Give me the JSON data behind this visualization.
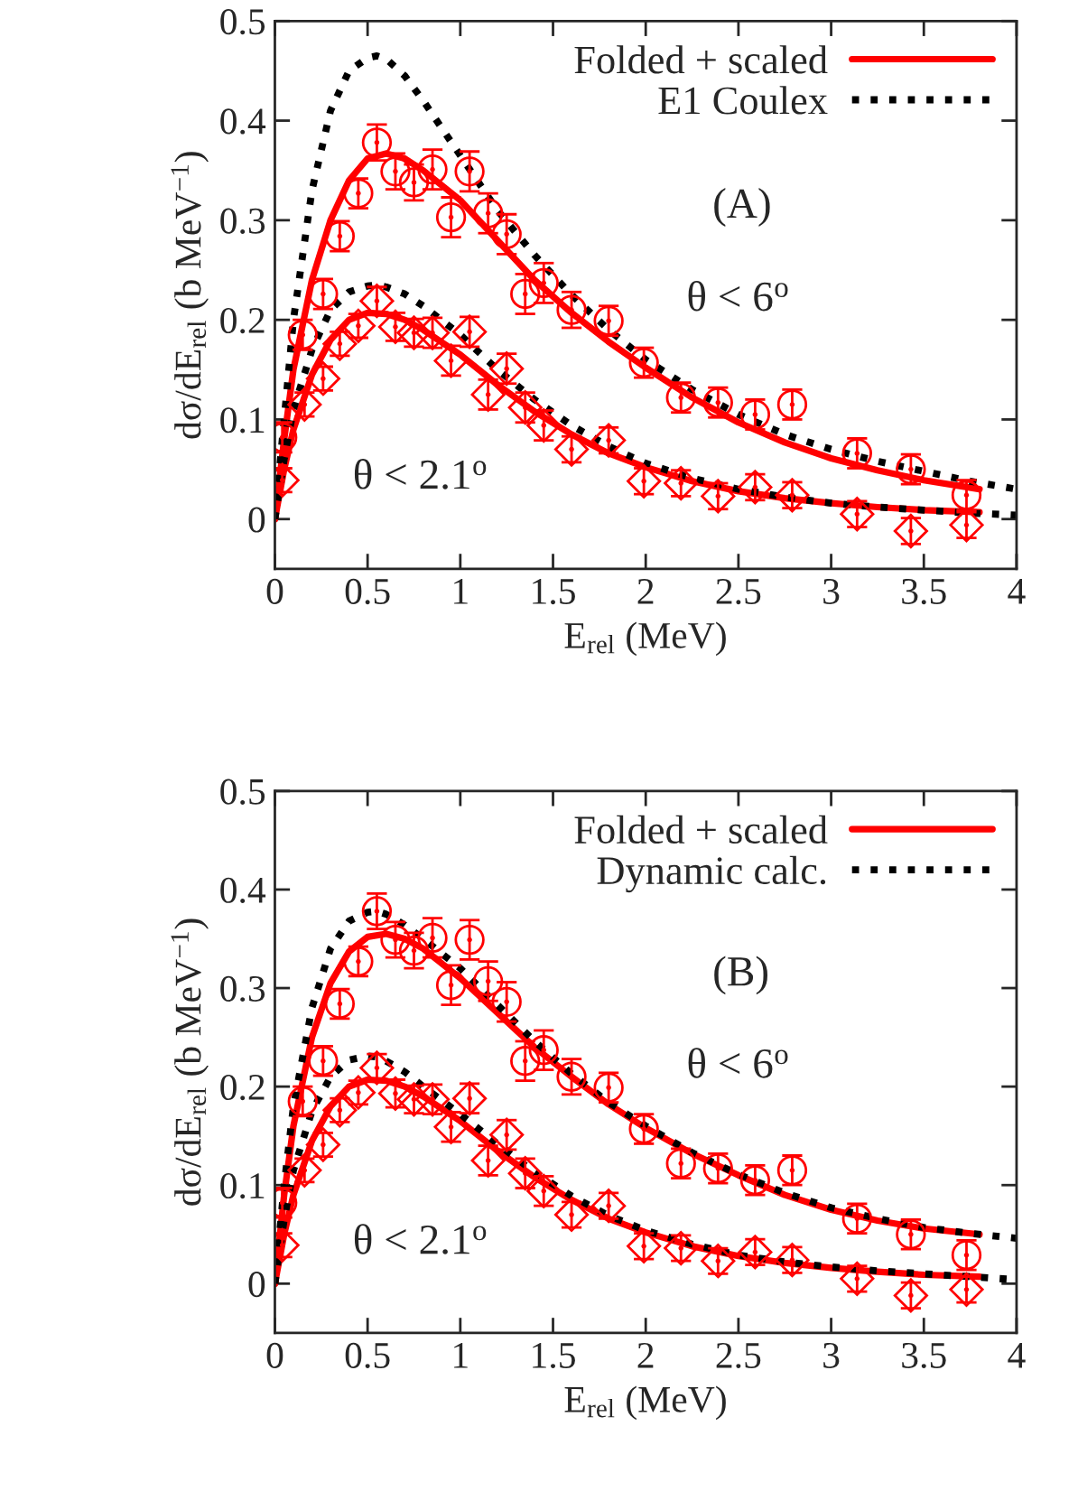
{
  "chart_data": [
    {
      "type": "line",
      "xlabel": "E$_{rel}$ (MeV)",
      "ylabel": "dσ/dE$_{rel}$ (b MeV$^{−1}$)",
      "xlim": [
        0,
        4
      ],
      "ylim": [
        -0.05,
        0.5
      ],
      "xticks": [
        0,
        0.5,
        1,
        1.5,
        2,
        2.5,
        3,
        3.5,
        4
      ],
      "yticks": [
        0,
        0.1,
        0.2,
        0.3,
        0.4,
        0.5
      ],
      "grid": false,
      "legend": "top right",
      "annotations": [
        "(A)",
        "θ < 6$^{o}$",
        "θ < 2.1$^{o}$"
      ],
      "series": [
        {
          "name": "Folded + scaled",
          "color": "#ff0000",
          "line_style": "solid",
          "x": [
            0,
            0.05,
            0.1,
            0.2,
            0.3,
            0.4,
            0.5,
            0.6,
            0.7,
            0.8,
            1.0,
            1.2,
            1.4,
            1.6,
            1.8,
            2.0,
            2.25,
            2.5,
            2.75,
            3.0,
            3.25,
            3.5,
            3.8
          ],
          "values": [
            0,
            0.08,
            0.15,
            0.24,
            0.3,
            0.34,
            0.362,
            0.367,
            0.362,
            0.35,
            0.32,
            0.28,
            0.24,
            0.207,
            0.178,
            0.152,
            0.122,
            0.097,
            0.077,
            0.061,
            0.049,
            0.039,
            0.03
          ]
        },
        {
          "name": "E1 Coulex",
          "color": "#000000",
          "line_style": "dotted",
          "x": [
            0,
            0.05,
            0.1,
            0.2,
            0.3,
            0.4,
            0.5,
            0.55,
            0.6,
            0.7,
            0.8,
            1.0,
            1.2,
            1.4,
            1.6,
            1.8,
            2.0,
            2.25,
            2.5,
            2.75,
            3.0,
            3.25,
            3.5,
            3.75,
            4.0
          ],
          "values": [
            0,
            0.1,
            0.2,
            0.33,
            0.41,
            0.45,
            0.463,
            0.465,
            0.462,
            0.445,
            0.42,
            0.365,
            0.31,
            0.265,
            0.225,
            0.19,
            0.16,
            0.13,
            0.105,
            0.085,
            0.07,
            0.058,
            0.048,
            0.038,
            0.03
          ]
        },
        {
          "type": "line",
          "color": "#ff0000",
          "line_style": "solid",
          "x": [
            0,
            0.05,
            0.1,
            0.2,
            0.3,
            0.4,
            0.5,
            0.6,
            0.7,
            0.8,
            1.0,
            1.2,
            1.4,
            1.6,
            1.8,
            2.0,
            2.25,
            2.5,
            2.75,
            3.0,
            3.25,
            3.5,
            3.8
          ],
          "values": [
            0,
            0.05,
            0.09,
            0.145,
            0.18,
            0.2,
            0.207,
            0.206,
            0.2,
            0.19,
            0.165,
            0.135,
            0.108,
            0.085,
            0.066,
            0.052,
            0.038,
            0.028,
            0.021,
            0.016,
            0.012,
            0.009,
            0.007
          ]
        },
        {
          "type": "line",
          "color": "#000000",
          "line_style": "dotted",
          "x": [
            0,
            0.05,
            0.1,
            0.2,
            0.3,
            0.4,
            0.5,
            0.55,
            0.6,
            0.7,
            0.8,
            1.0,
            1.2,
            1.4,
            1.6,
            1.8,
            2.0,
            2.25,
            2.5,
            2.75,
            3.0,
            3.25,
            3.5,
            3.75,
            4.0
          ],
          "values": [
            0,
            0.06,
            0.11,
            0.17,
            0.21,
            0.228,
            0.234,
            0.235,
            0.233,
            0.226,
            0.214,
            0.185,
            0.15,
            0.12,
            0.094,
            0.073,
            0.056,
            0.041,
            0.03,
            0.022,
            0.016,
            0.012,
            0.009,
            0.006,
            0.004
          ]
        },
        {
          "type": "scatter",
          "marker": "circle",
          "color": "#ff0000",
          "x": [
            0.04,
            0.15,
            0.26,
            0.35,
            0.45,
            0.55,
            0.65,
            0.75,
            0.85,
            0.95,
            1.05,
            1.15,
            1.25,
            1.35,
            1.45,
            1.6,
            1.8,
            1.99,
            2.19,
            2.39,
            2.59,
            2.79,
            3.14,
            3.43,
            3.73
          ],
          "values": [
            0.082,
            0.185,
            0.226,
            0.284,
            0.327,
            0.378,
            0.349,
            0.338,
            0.351,
            0.303,
            0.349,
            0.307,
            0.286,
            0.226,
            0.237,
            0.21,
            0.199,
            0.157,
            0.122,
            0.117,
            0.105,
            0.115,
            0.066,
            0.05,
            0.024
          ],
          "errors": [
            0.015,
            0.015,
            0.015,
            0.015,
            0.015,
            0.018,
            0.018,
            0.018,
            0.02,
            0.02,
            0.02,
            0.02,
            0.02,
            0.02,
            0.02,
            0.018,
            0.015,
            0.015,
            0.015,
            0.015,
            0.015,
            0.015,
            0.015,
            0.015,
            0.015
          ]
        },
        {
          "type": "scatter",
          "marker": "diamond",
          "color": "#ff0000",
          "x": [
            0.04,
            0.16,
            0.26,
            0.35,
            0.45,
            0.55,
            0.65,
            0.75,
            0.85,
            0.95,
            1.05,
            1.15,
            1.25,
            1.35,
            1.45,
            1.6,
            1.8,
            1.99,
            2.19,
            2.39,
            2.59,
            2.79,
            3.14,
            3.43,
            3.73
          ],
          "values": [
            0.039,
            0.115,
            0.141,
            0.176,
            0.194,
            0.219,
            0.193,
            0.187,
            0.187,
            0.159,
            0.188,
            0.125,
            0.151,
            0.112,
            0.094,
            0.07,
            0.079,
            0.038,
            0.036,
            0.023,
            0.032,
            0.024,
            0.005,
            -0.012,
            -0.006
          ],
          "errors": [
            0.012,
            0.012,
            0.012,
            0.012,
            0.012,
            0.014,
            0.014,
            0.014,
            0.015,
            0.015,
            0.015,
            0.015,
            0.015,
            0.015,
            0.015,
            0.013,
            0.013,
            0.013,
            0.013,
            0.013,
            0.013,
            0.013,
            0.013,
            0.013,
            0.013
          ]
        }
      ]
    },
    {
      "type": "line",
      "xlabel": "E$_{rel}$ (MeV)",
      "ylabel": "dσ/dE$_{rel}$ (b MeV$^{−1}$)",
      "xlim": [
        0,
        4
      ],
      "ylim": [
        -0.05,
        0.5
      ],
      "xticks": [
        0,
        0.5,
        1,
        1.5,
        2,
        2.5,
        3,
        3.5,
        4
      ],
      "yticks": [
        0,
        0.1,
        0.2,
        0.3,
        0.4,
        0.5
      ],
      "grid": false,
      "legend": "top right",
      "annotations": [
        "(B)",
        "θ < 6$^{o}$",
        "θ < 2.1$^{o}$"
      ],
      "series": [
        {
          "name": "Folded + scaled",
          "color": "#ff0000",
          "line_style": "solid",
          "x": [
            0,
            0.05,
            0.1,
            0.2,
            0.3,
            0.4,
            0.5,
            0.6,
            0.7,
            0.8,
            1.0,
            1.2,
            1.4,
            1.6,
            1.8,
            2.0,
            2.25,
            2.5,
            2.75,
            3.0,
            3.25,
            3.5,
            3.8
          ],
          "values": [
            0,
            0.09,
            0.16,
            0.25,
            0.305,
            0.337,
            0.352,
            0.355,
            0.35,
            0.34,
            0.31,
            0.275,
            0.24,
            0.21,
            0.182,
            0.158,
            0.132,
            0.11,
            0.09,
            0.075,
            0.064,
            0.056,
            0.05
          ]
        },
        {
          "name": "Dynamic calc.",
          "color": "#000000",
          "line_style": "dotted",
          "x": [
            0,
            0.05,
            0.1,
            0.2,
            0.3,
            0.4,
            0.5,
            0.55,
            0.6,
            0.7,
            0.8,
            1.0,
            1.2,
            1.4,
            1.6,
            1.8,
            2.0,
            2.25,
            2.5,
            2.75,
            3.0,
            3.25,
            3.5,
            3.75,
            4.0
          ],
          "values": [
            0,
            0.1,
            0.18,
            0.28,
            0.34,
            0.368,
            0.377,
            0.378,
            0.375,
            0.364,
            0.35,
            0.32,
            0.283,
            0.246,
            0.213,
            0.184,
            0.16,
            0.133,
            0.111,
            0.092,
            0.077,
            0.066,
            0.057,
            0.051,
            0.046
          ]
        },
        {
          "type": "line",
          "color": "#ff0000",
          "line_style": "solid",
          "x": [
            0,
            0.05,
            0.1,
            0.2,
            0.3,
            0.4,
            0.5,
            0.6,
            0.7,
            0.8,
            1.0,
            1.2,
            1.4,
            1.6,
            1.8,
            2.0,
            2.25,
            2.5,
            2.75,
            3.0,
            3.25,
            3.5,
            3.8
          ],
          "values": [
            0,
            0.05,
            0.09,
            0.145,
            0.18,
            0.2,
            0.207,
            0.206,
            0.2,
            0.19,
            0.165,
            0.135,
            0.108,
            0.085,
            0.066,
            0.052,
            0.038,
            0.028,
            0.021,
            0.016,
            0.012,
            0.009,
            0.007
          ]
        },
        {
          "type": "line",
          "color": "#000000",
          "line_style": "dotted",
          "x": [
            0,
            0.05,
            0.1,
            0.2,
            0.3,
            0.4,
            0.5,
            0.55,
            0.6,
            0.7,
            0.8,
            1.0,
            1.2,
            1.4,
            1.6,
            1.8,
            2.0,
            2.25,
            2.5,
            2.75,
            3.0,
            3.25,
            3.5,
            3.75,
            4.0
          ],
          "values": [
            0,
            0.065,
            0.115,
            0.175,
            0.21,
            0.227,
            0.231,
            0.23,
            0.226,
            0.215,
            0.2,
            0.172,
            0.142,
            0.113,
            0.089,
            0.069,
            0.054,
            0.04,
            0.029,
            0.022,
            0.017,
            0.013,
            0.01,
            0.007,
            0.004
          ]
        },
        {
          "type": "scatter",
          "marker": "circle",
          "color": "#ff0000",
          "x": [
            0.04,
            0.15,
            0.26,
            0.35,
            0.45,
            0.55,
            0.65,
            0.75,
            0.85,
            0.95,
            1.05,
            1.15,
            1.25,
            1.35,
            1.45,
            1.6,
            1.8,
            1.99,
            2.19,
            2.39,
            2.59,
            2.79,
            3.14,
            3.43,
            3.73
          ],
          "values": [
            0.082,
            0.185,
            0.226,
            0.284,
            0.327,
            0.378,
            0.349,
            0.338,
            0.351,
            0.303,
            0.349,
            0.307,
            0.286,
            0.226,
            0.237,
            0.21,
            0.199,
            0.157,
            0.122,
            0.117,
            0.105,
            0.115,
            0.066,
            0.05,
            0.029
          ],
          "errors": [
            0.015,
            0.015,
            0.015,
            0.015,
            0.015,
            0.018,
            0.018,
            0.018,
            0.02,
            0.02,
            0.02,
            0.02,
            0.02,
            0.02,
            0.02,
            0.018,
            0.015,
            0.015,
            0.015,
            0.015,
            0.015,
            0.015,
            0.015,
            0.015,
            0.015
          ]
        },
        {
          "type": "scatter",
          "marker": "diamond",
          "color": "#ff0000",
          "x": [
            0.04,
            0.16,
            0.26,
            0.35,
            0.45,
            0.55,
            0.65,
            0.75,
            0.85,
            0.95,
            1.05,
            1.15,
            1.25,
            1.35,
            1.45,
            1.6,
            1.8,
            1.99,
            2.19,
            2.39,
            2.59,
            2.79,
            3.14,
            3.43,
            3.73
          ],
          "values": [
            0.039,
            0.115,
            0.141,
            0.176,
            0.194,
            0.219,
            0.193,
            0.187,
            0.187,
            0.159,
            0.188,
            0.125,
            0.151,
            0.112,
            0.094,
            0.07,
            0.079,
            0.038,
            0.036,
            0.023,
            0.032,
            0.024,
            0.005,
            -0.012,
            -0.006
          ],
          "errors": [
            0.012,
            0.012,
            0.012,
            0.012,
            0.012,
            0.014,
            0.014,
            0.014,
            0.015,
            0.015,
            0.015,
            0.015,
            0.015,
            0.015,
            0.015,
            0.013,
            0.013,
            0.013,
            0.013,
            0.013,
            0.013,
            0.013,
            0.013,
            0.013,
            0.013
          ]
        }
      ]
    }
  ]
}
